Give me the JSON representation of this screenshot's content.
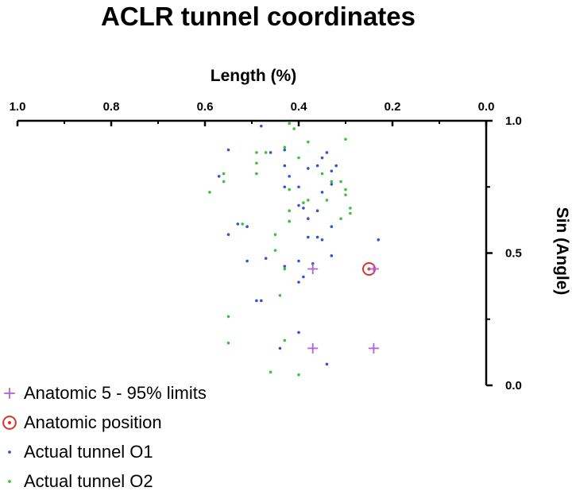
{
  "chart_data": {
    "type": "scatter",
    "title": "ACLR tunnel coordinates",
    "xlabel": "Length (%)",
    "ylabel": "Sin (Angle)",
    "xlim": [
      1.0,
      0.0
    ],
    "ylim": [
      0.0,
      1.0
    ],
    "x_reversed": true,
    "x_axis_position": "top",
    "y_axis_position": "right",
    "x_ticks": [
      "1.0",
      "0.8",
      "0.6",
      "0.4",
      "0.2",
      "0.0"
    ],
    "y_ticks": [
      "1.0",
      "0.5",
      "0.0"
    ],
    "grid": false,
    "legend_position": "bottom-left",
    "series": [
      {
        "name": "Anatomic 5 - 95% limits",
        "marker": "plus",
        "color": "#b65fd6",
        "points": [
          [
            0.37,
            0.44
          ],
          [
            0.24,
            0.44
          ],
          [
            0.37,
            0.14
          ],
          [
            0.24,
            0.14
          ]
        ]
      },
      {
        "name": "Anatomic position",
        "marker": "circle-dot",
        "color": "#d9352a",
        "points": [
          [
            0.25,
            0.44
          ]
        ]
      },
      {
        "name": "Actual tunnel O1",
        "marker": "dot",
        "color": "#2f55d4",
        "points": [
          [
            0.48,
            0.98
          ],
          [
            0.55,
            0.89
          ],
          [
            0.46,
            0.88
          ],
          [
            0.43,
            0.89
          ],
          [
            0.34,
            0.88
          ],
          [
            0.35,
            0.86
          ],
          [
            0.36,
            0.83
          ],
          [
            0.43,
            0.83
          ],
          [
            0.32,
            0.83
          ],
          [
            0.33,
            0.81
          ],
          [
            0.57,
            0.79
          ],
          [
            0.42,
            0.79
          ],
          [
            0.38,
            0.82
          ],
          [
            0.4,
            0.75
          ],
          [
            0.43,
            0.75
          ],
          [
            0.33,
            0.76
          ],
          [
            0.35,
            0.73
          ],
          [
            0.4,
            0.68
          ],
          [
            0.39,
            0.67
          ],
          [
            0.36,
            0.66
          ],
          [
            0.38,
            0.63
          ],
          [
            0.33,
            0.6
          ],
          [
            0.42,
            0.62
          ],
          [
            0.53,
            0.61
          ],
          [
            0.51,
            0.6
          ],
          [
            0.55,
            0.57
          ],
          [
            0.38,
            0.56
          ],
          [
            0.36,
            0.56
          ],
          [
            0.35,
            0.55
          ],
          [
            0.23,
            0.55
          ],
          [
            0.33,
            0.49
          ],
          [
            0.51,
            0.47
          ],
          [
            0.47,
            0.48
          ],
          [
            0.4,
            0.47
          ],
          [
            0.43,
            0.45
          ],
          [
            0.37,
            0.46
          ],
          [
            0.39,
            0.41
          ],
          [
            0.4,
            0.39
          ],
          [
            0.48,
            0.32
          ],
          [
            0.49,
            0.32
          ],
          [
            0.4,
            0.2
          ],
          [
            0.44,
            0.14
          ],
          [
            0.34,
            0.08
          ]
        ]
      },
      {
        "name": "Actual tunnel O2",
        "marker": "dot",
        "color": "#3bc43b",
        "points": [
          [
            0.42,
            0.99
          ],
          [
            0.41,
            0.97
          ],
          [
            0.3,
            0.93
          ],
          [
            0.38,
            0.92
          ],
          [
            0.43,
            0.9
          ],
          [
            0.47,
            0.88
          ],
          [
            0.49,
            0.88
          ],
          [
            0.4,
            0.86
          ],
          [
            0.49,
            0.84
          ],
          [
            0.56,
            0.8
          ],
          [
            0.49,
            0.8
          ],
          [
            0.35,
            0.8
          ],
          [
            0.56,
            0.77
          ],
          [
            0.31,
            0.77
          ],
          [
            0.33,
            0.77
          ],
          [
            0.42,
            0.74
          ],
          [
            0.59,
            0.73
          ],
          [
            0.3,
            0.74
          ],
          [
            0.3,
            0.72
          ],
          [
            0.38,
            0.7
          ],
          [
            0.39,
            0.69
          ],
          [
            0.29,
            0.67
          ],
          [
            0.34,
            0.7
          ],
          [
            0.29,
            0.65
          ],
          [
            0.42,
            0.66
          ],
          [
            0.31,
            0.63
          ],
          [
            0.42,
            0.62
          ],
          [
            0.52,
            0.61
          ],
          [
            0.45,
            0.57
          ],
          [
            0.45,
            0.51
          ],
          [
            0.43,
            0.44
          ],
          [
            0.44,
            0.34
          ],
          [
            0.55,
            0.26
          ],
          [
            0.55,
            0.16
          ],
          [
            0.43,
            0.17
          ],
          [
            0.46,
            0.05
          ],
          [
            0.4,
            0.04
          ]
        ]
      }
    ]
  }
}
